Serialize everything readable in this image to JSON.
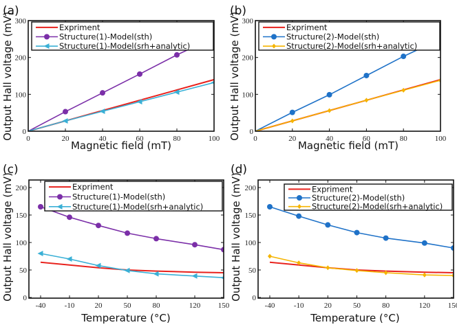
{
  "chart_data": [
    {
      "panel": "(a)",
      "type": "line",
      "xlabel": "Magnetic field (mT)",
      "ylabel": "Output Hall voltage (mV)",
      "xlim": [
        0,
        100
      ],
      "ylim": [
        0,
        300
      ],
      "x_ticks": [
        0,
        20,
        40,
        60,
        80,
        100
      ],
      "y_ticks": [
        0,
        100,
        200,
        300
      ],
      "x_scale": "linear",
      "legend_position": "top",
      "series": [
        {
          "name": "Expriment",
          "color": "#e8211c",
          "marker": "none",
          "x": [
            0,
            100
          ],
          "y": [
            0,
            140
          ]
        },
        {
          "name": "Structure(1)-Model(sth)",
          "color": "#7b2fa8",
          "marker": "circle",
          "x": [
            0,
            20,
            40,
            60,
            80,
            100
          ],
          "y": [
            0,
            53,
            104,
            155,
            207,
            254
          ]
        },
        {
          "name": "Structure(1)-Model(srh+analytic)",
          "color": "#3ab0d6",
          "marker": "triangle-left",
          "x": [
            0,
            20,
            40,
            60,
            80,
            100
          ],
          "y": [
            0,
            28,
            54,
            80,
            106,
            132
          ]
        }
      ]
    },
    {
      "panel": "(b)",
      "type": "line",
      "xlabel": "Magnetic field (mT)",
      "ylabel": "Output Hall voltage (mV)",
      "xlim": [
        0,
        100
      ],
      "ylim": [
        0,
        300
      ],
      "x_ticks": [
        0,
        20,
        40,
        60,
        80,
        100
      ],
      "y_ticks": [
        0,
        100,
        200,
        300
      ],
      "x_scale": "linear",
      "legend_position": "top",
      "series": [
        {
          "name": "Expriment",
          "color": "#e8211c",
          "marker": "none",
          "x": [
            0,
            100
          ],
          "y": [
            0,
            140
          ]
        },
        {
          "name": "Structure(2)-Model(sth)",
          "color": "#1f72c8",
          "marker": "circle",
          "x": [
            0,
            20,
            40,
            60,
            80,
            100
          ],
          "y": [
            0,
            51,
            99,
            151,
            203,
            250
          ]
        },
        {
          "name": "Structure(2)-Model(srh+analytic)",
          "color": "#f5b400",
          "marker": "diamond",
          "x": [
            0,
            20,
            40,
            60,
            80,
            100
          ],
          "y": [
            0,
            28,
            56,
            84,
            111,
            138
          ]
        }
      ]
    },
    {
      "panel": "(c)",
      "type": "line",
      "xlabel": "Temperature (°C)",
      "ylabel": "Output Hall voltage (mV)",
      "xlim": [
        -40,
        150
      ],
      "ylim": [
        0,
        200
      ],
      "x_ticks": [
        -40,
        -10,
        20,
        50,
        80,
        120,
        150
      ],
      "y_ticks": [
        0,
        50,
        100,
        150,
        200
      ],
      "x_scale": "linear",
      "legend_position": "top-right",
      "series": [
        {
          "name": "Expriment",
          "color": "#e8211c",
          "marker": "none",
          "x": [
            -40,
            -10,
            20,
            50,
            80,
            120,
            150
          ],
          "y": [
            64,
            59,
            54,
            50,
            48,
            46,
            45
          ]
        },
        {
          "name": "Structure(1)-Model(sth)",
          "color": "#7b2fa8",
          "marker": "circle",
          "x": [
            -40,
            -10,
            20,
            50,
            80,
            120,
            150
          ],
          "y": [
            165,
            146,
            131,
            117,
            107,
            96,
            87
          ]
        },
        {
          "name": "Structure(1)-Model(srh+analytic)",
          "color": "#3ab0d6",
          "marker": "triangle-left",
          "x": [
            -40,
            -10,
            20,
            50,
            80,
            120,
            150
          ],
          "y": [
            80,
            70,
            58,
            49,
            43,
            39,
            36
          ]
        }
      ]
    },
    {
      "panel": "(d)",
      "type": "line",
      "xlabel": "Temperature (°C)",
      "ylabel": "Output Hall voltage (mV)",
      "xlim": [
        -40,
        150
      ],
      "ylim": [
        0,
        200
      ],
      "x_ticks": [
        -40,
        -10,
        20,
        50,
        80,
        120,
        150
      ],
      "y_ticks": [
        0,
        50,
        100,
        150,
        200
      ],
      "x_scale": "linear",
      "legend_position": "top-right",
      "series": [
        {
          "name": "Expriment",
          "color": "#e8211c",
          "marker": "none",
          "x": [
            -40,
            -10,
            20,
            50,
            80,
            120,
            150
          ],
          "y": [
            64,
            59,
            54,
            50,
            48,
            46,
            45
          ]
        },
        {
          "name": "Structure(2)-Model(sth)",
          "color": "#1f72c8",
          "marker": "circle",
          "x": [
            -40,
            -10,
            20,
            50,
            80,
            120,
            150
          ],
          "y": [
            165,
            148,
            132,
            118,
            108,
            99,
            90
          ]
        },
        {
          "name": "Structure(2)-Model(srh+analytic)",
          "color": "#f5b400",
          "marker": "diamond",
          "x": [
            -40,
            -10,
            20,
            50,
            80,
            120,
            150
          ],
          "y": [
            75,
            63,
            54,
            49,
            45,
            41,
            40
          ]
        }
      ]
    }
  ]
}
